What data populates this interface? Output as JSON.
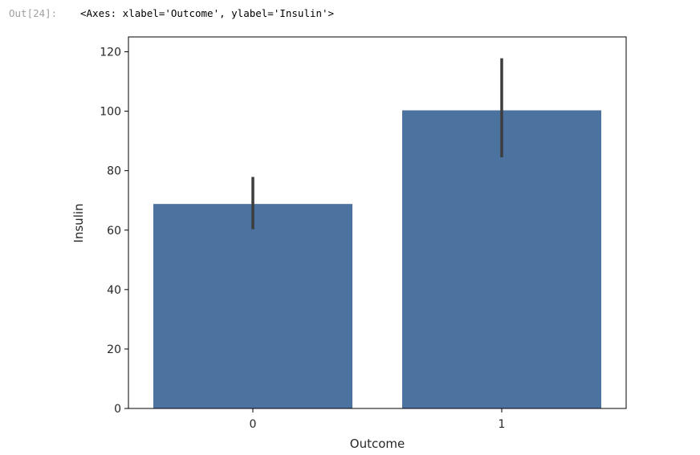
{
  "cell": {
    "prompt": "Out[24]:",
    "repr": "<Axes: xlabel='Outcome', ylabel='Insulin'>"
  },
  "chart_data": {
    "type": "bar",
    "categories": [
      "0",
      "1"
    ],
    "values": [
      68.8,
      100.3
    ],
    "error_bars": [
      [
        60.3,
        77.9
      ],
      [
        84.5,
        117.8
      ]
    ],
    "xlabel": "Outcome",
    "ylabel": "Insulin",
    "ylim": [
      0,
      125
    ],
    "yticks": [
      0,
      20,
      40,
      60,
      80,
      100,
      120
    ],
    "grid": false,
    "bar_color": "#4c72a0",
    "errorbar_color": "#3d3d3d"
  }
}
